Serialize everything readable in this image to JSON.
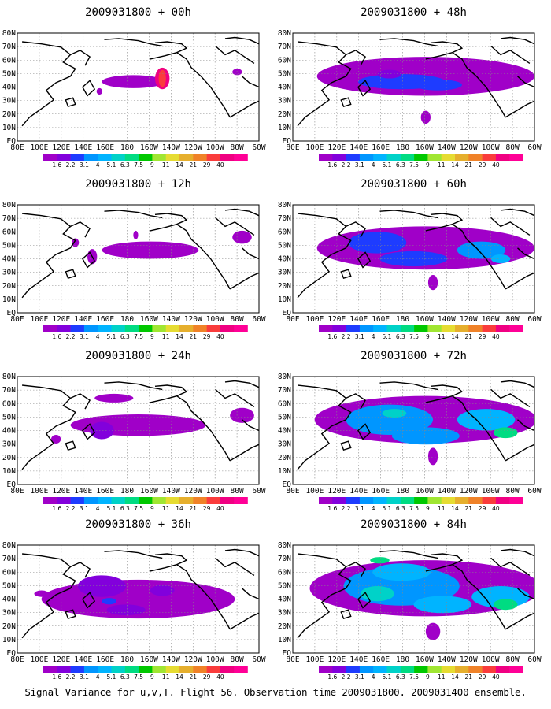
{
  "chart_data": {
    "type": "heatmap",
    "caption": "Signal Variance for u,v,T. Flight 56. Observation time 2009031800. 2009031400 ensemble.",
    "colorbar": {
      "colors": [
        "#a000c8",
        "#8200dc",
        "#1e3cff",
        "#0096ff",
        "#00b4ff",
        "#00d2c8",
        "#00dc82",
        "#00c800",
        "#a0e632",
        "#e6dc32",
        "#e6af2d",
        "#f08228",
        "#fa3c3c",
        "#f00082",
        "#ff0096"
      ],
      "labels": [
        "1.6",
        "2.2",
        "3.1",
        "4",
        "5.1",
        "6.3",
        "7.5",
        "9",
        "11",
        "14",
        "21",
        "29",
        "40"
      ]
    },
    "axes": {
      "x_ticks": [
        "80E",
        "100E",
        "120E",
        "140E",
        "160E",
        "180",
        "160W",
        "140W",
        "120W",
        "100W",
        "80W",
        "60W"
      ],
      "y_ticks": [
        "EQ",
        "10N",
        "20N",
        "30N",
        "40N",
        "50N",
        "60N",
        "70N",
        "80N"
      ]
    },
    "panels": [
      {
        "title": "2009031800 + 00h",
        "lead_hours": 0
      },
      {
        "title": "2009031800 + 48h",
        "lead_hours": 48
      },
      {
        "title": "2009031800 + 12h",
        "lead_hours": 12
      },
      {
        "title": "2009031800 + 60h",
        "lead_hours": 60
      },
      {
        "title": "2009031800 + 24h",
        "lead_hours": 24
      },
      {
        "title": "2009031800 + 72h",
        "lead_hours": 72
      },
      {
        "title": "2009031800 + 36h",
        "lead_hours": 36
      },
      {
        "title": "2009031800 + 84h",
        "lead_hours": 84
      }
    ]
  }
}
